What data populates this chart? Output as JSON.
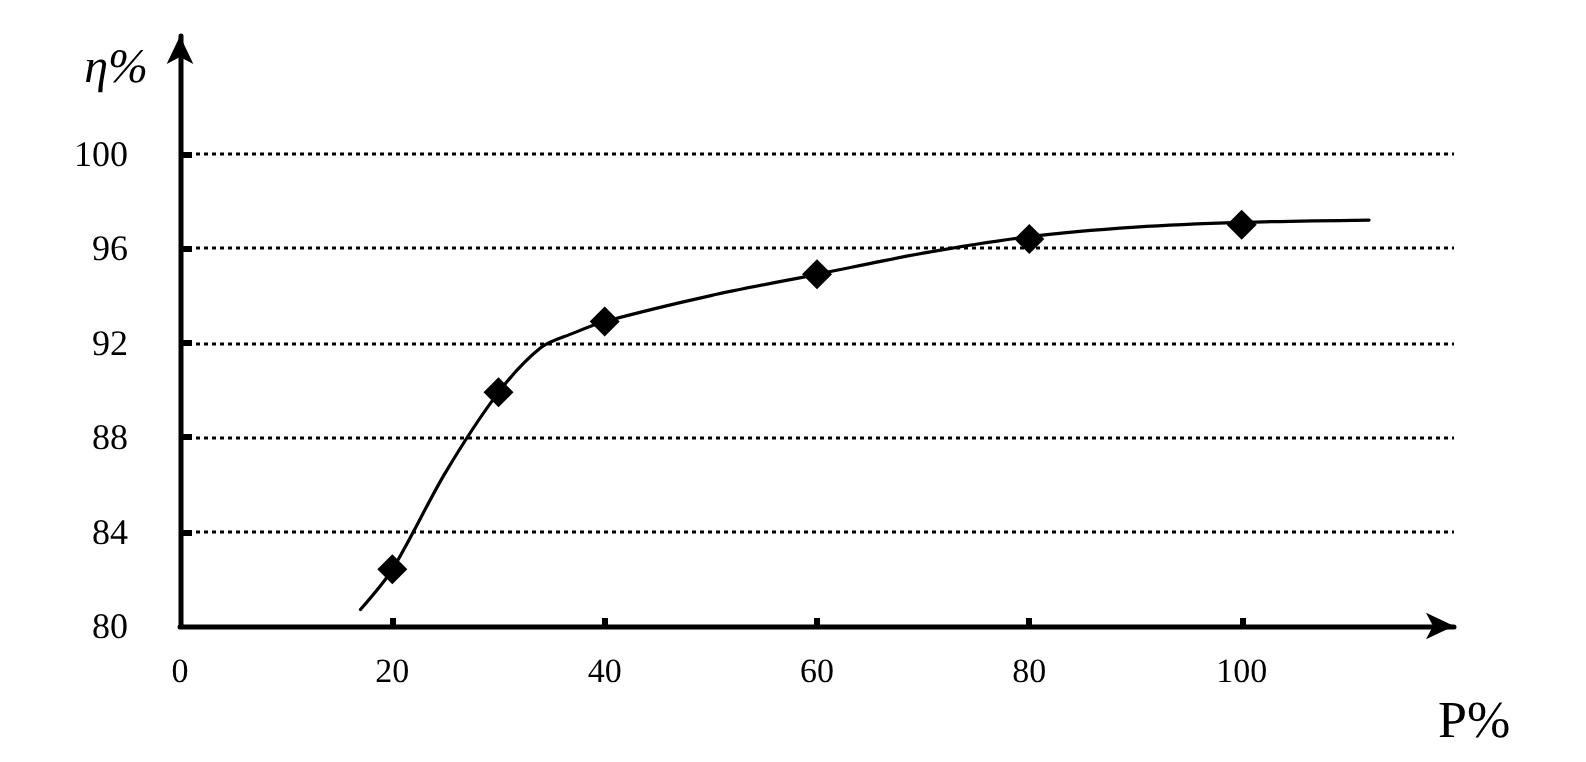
{
  "chart_data": {
    "type": "scatter",
    "xlabel": "P%",
    "ylabel": "η%",
    "xlim": [
      0,
      120
    ],
    "ylim": [
      80,
      105
    ],
    "xticks": [
      0,
      20,
      40,
      60,
      80,
      100
    ],
    "yticks": [
      80,
      84,
      88,
      92,
      96,
      100
    ],
    "grid": "y",
    "marker": "diamond",
    "series": [
      {
        "type": "line",
        "color": "#000000",
        "marker": "none",
        "x": [
          17,
          20,
          25,
          30,
          34,
          37,
          40,
          50,
          60,
          70,
          80,
          90,
          100,
          112
        ],
        "values": [
          80.7,
          82.4,
          86.5,
          89.9,
          91.8,
          92.4,
          92.9,
          94.0,
          94.9,
          95.8,
          96.5,
          96.9,
          97.1,
          97.2
        ]
      },
      {
        "color": "#000000",
        "x": [
          20,
          30,
          40,
          60,
          80,
          100
        ],
        "values": [
          82.4,
          89.9,
          92.9,
          94.9,
          96.4,
          97.0
        ]
      }
    ]
  }
}
